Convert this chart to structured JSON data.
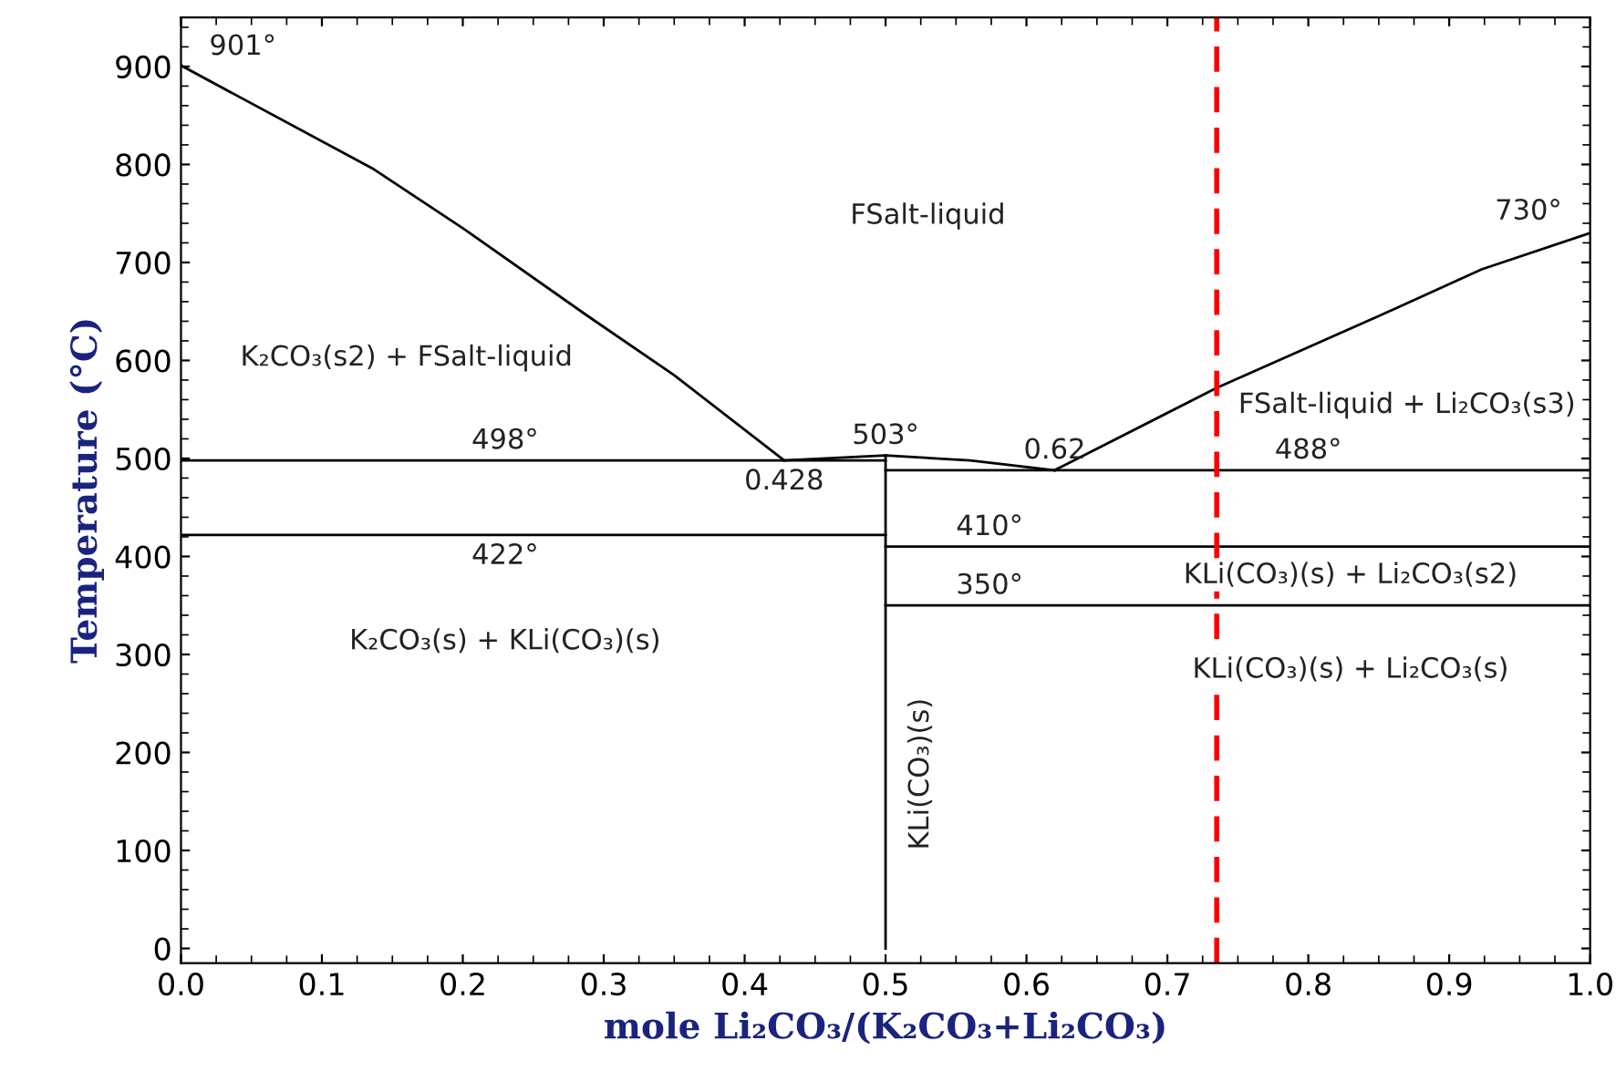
{
  "chart_data": {
    "type": "line",
    "xlabel": "mole Li₂CO₃/(K₂CO₃+Li₂CO₃)",
    "ylabel": "Temperature (°C)",
    "xlim": [
      0,
      1
    ],
    "ylim": [
      -15,
      950
    ],
    "xticks": [
      {
        "value": 0,
        "label": "0.0"
      },
      0.1,
      0.2,
      0.3,
      0.4,
      0.5,
      0.6,
      0.7,
      0.8,
      0.9,
      {
        "value": 1,
        "label": "1.0"
      }
    ],
    "yticks": [
      0,
      100,
      200,
      300,
      400,
      500,
      600,
      700,
      800,
      900
    ],
    "grid": false,
    "legend": false,
    "marker": "none",
    "line_style": "solid",
    "series": [
      {
        "color": "#000000",
        "x": [
          0,
          0.137,
          0.2,
          0.288,
          0.35,
          0.428
        ],
        "values": [
          901,
          795,
          735,
          646,
          585,
          498
        ]
      },
      {
        "color": "#000000",
        "x": [
          0.428,
          0.5,
          0.56,
          0.62
        ],
        "values": [
          498,
          503,
          498,
          488
        ]
      },
      {
        "color": "#000000",
        "x": [
          0.62,
          0.735,
          0.851,
          0.923,
          1.0
        ],
        "values": [
          488,
          572,
          646,
          693,
          730
        ]
      },
      {
        "color": "#000000",
        "x": [
          0,
          0.5
        ],
        "values": [
          498,
          498
        ]
      },
      {
        "color": "#000000",
        "x": [
          0,
          0.5
        ],
        "values": [
          422,
          422
        ]
      },
      {
        "color": "#000000",
        "x": [
          0.5,
          0.5
        ],
        "values": [
          0,
          503
        ]
      },
      {
        "color": "#000000",
        "x": [
          0.5,
          1.0
        ],
        "values": [
          488,
          488
        ]
      },
      {
        "color": "#000000",
        "x": [
          0.5,
          1.0
        ],
        "values": [
          410,
          410
        ]
      },
      {
        "color": "#000000",
        "x": [
          0.5,
          1.0
        ],
        "values": [
          350,
          350
        ]
      }
    ],
    "ref_lines": [
      {
        "axis": "x",
        "value": 0.735,
        "color": "#ff0000",
        "line_style": "dashed"
      }
    ],
    "annotations": [
      {
        "text": "901°",
        "x": 0,
        "y": 901
      },
      {
        "text": "730°",
        "x": 1.0,
        "y": 730
      },
      {
        "text": "498°",
        "x": 0.23,
        "y": 498
      },
      {
        "text": "422°",
        "x": 0.23,
        "y": 422
      },
      {
        "text": "503°",
        "x": 0.5,
        "y": 503
      },
      {
        "text": "0.428",
        "x": 0.428,
        "y": 498
      },
      {
        "text": "0.62",
        "x": 0.62,
        "y": 488
      },
      {
        "text": "488°",
        "x": 0.8,
        "y": 488
      },
      {
        "text": "410°",
        "x": 0.55,
        "y": 410
      },
      {
        "text": "350°",
        "x": 0.55,
        "y": 350
      },
      "FSalt-liquid",
      "K₂CO₃(s2) + FSalt-liquid",
      "FSalt-liquid + Li₂CO₃(s3)",
      "K₂CO₃(s) + KLi(CO₃)(s)",
      "KLi(CO₃)(s) + Li₂CO₃(s2)",
      "KLi(CO₃)(s) + Li₂CO₃(s)",
      "KLi(CO₃)(s)"
    ]
  }
}
